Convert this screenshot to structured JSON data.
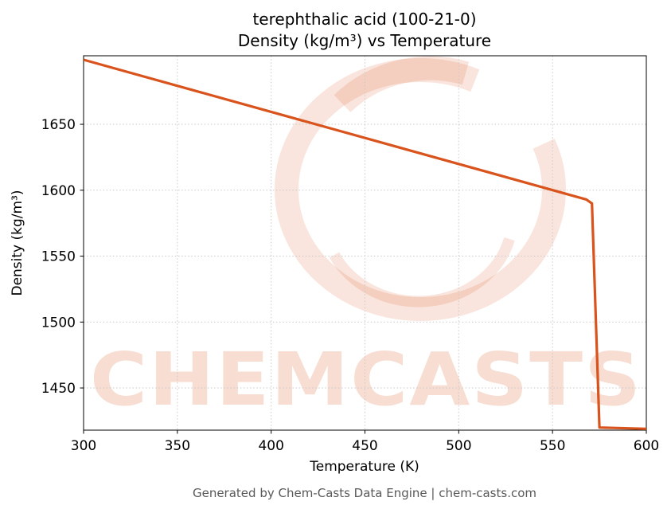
{
  "title_line1": "terephthalic acid (100-21-0)",
  "title_line2": "Density (kg/m³) vs Temperature",
  "footer": "Generated by Chem-Casts Data Engine | chem-casts.com",
  "watermark": "CHEMCASTS",
  "chart_data": {
    "type": "line",
    "title": "terephthalic acid (100-21-0) — Density (kg/m³) vs Temperature",
    "xlabel": "Temperature (K)",
    "ylabel": "Density (kg/m³)",
    "xlim": [
      300,
      600
    ],
    "ylim": [
      1418,
      1702
    ],
    "xticks": [
      300,
      350,
      400,
      450,
      500,
      550,
      600
    ],
    "yticks": [
      1450,
      1500,
      1550,
      1600,
      1650
    ],
    "grid": true,
    "grid_style": "dotted",
    "legend": false,
    "line_color": "#d9531c",
    "watermark_color": "#d9531c",
    "series": [
      {
        "name": "density",
        "points": [
          [
            300,
            1699
          ],
          [
            568,
            1593
          ],
          [
            571,
            1590
          ],
          [
            575,
            1420
          ],
          [
            600,
            1419
          ]
        ]
      }
    ]
  }
}
